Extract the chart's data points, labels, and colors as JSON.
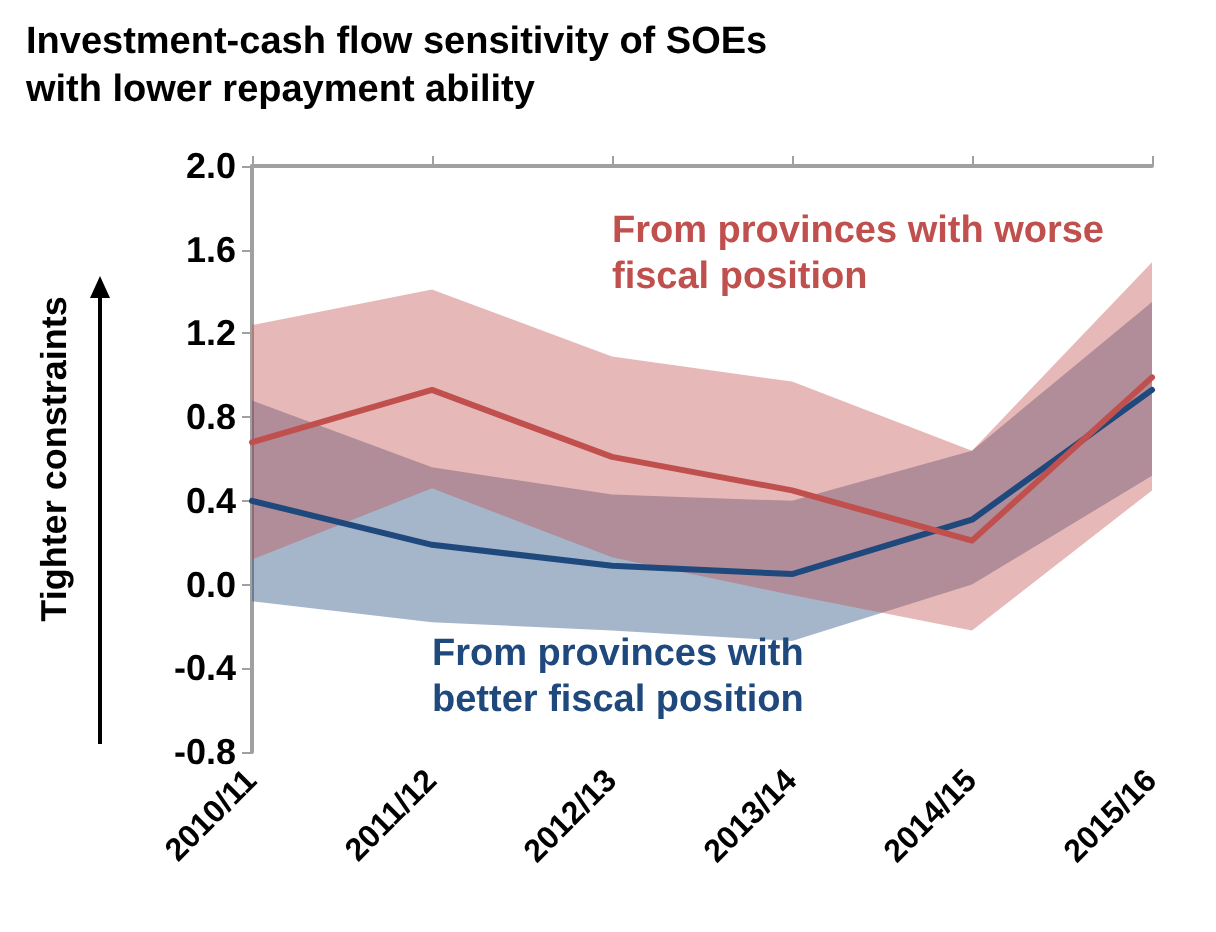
{
  "chart_data": {
    "type": "line",
    "title": "Investment-cash flow sensitivity of SOEs with lower repayment ability",
    "ylabel": "Tighter constraints",
    "categories": [
      "2010/11",
      "2011/12",
      "2012/13",
      "2013/14",
      "2014/15",
      "2015/16"
    ],
    "series": [
      {
        "name": "From provinces with better fiscal position",
        "color": "#1f497d",
        "values": [
          0.4,
          0.19,
          0.09,
          0.05,
          0.31,
          0.93
        ],
        "lower": [
          -0.08,
          -0.18,
          -0.22,
          -0.27,
          0.0,
          0.52
        ],
        "upper": [
          0.88,
          0.56,
          0.43,
          0.4,
          0.64,
          1.35
        ]
      },
      {
        "name": "From provinces with worse fiscal position",
        "color": "#c0504d",
        "values": [
          0.68,
          0.93,
          0.61,
          0.45,
          0.21,
          0.99
        ],
        "lower": [
          0.12,
          0.46,
          0.13,
          -0.05,
          -0.22,
          0.45
        ],
        "upper": [
          1.24,
          1.41,
          1.09,
          0.97,
          0.64,
          1.54
        ]
      }
    ],
    "ylim": [
      -0.8,
      2.0
    ],
    "yticks": [
      {
        "value": -0.8,
        "label": "-0.8"
      },
      {
        "value": -0.4,
        "label": "-0.4"
      },
      {
        "value": 0,
        "label": "0.0"
      },
      {
        "value": 0.4,
        "label": "0.4"
      },
      {
        "value": 0.8,
        "label": "0.8"
      },
      {
        "value": 1.2,
        "label": "1.2"
      },
      {
        "value": 1.6,
        "label": "1.6"
      },
      {
        "value": 2,
        "label": "2.0"
      }
    ],
    "grid": false,
    "marker": "none",
    "line_style": "solid"
  }
}
